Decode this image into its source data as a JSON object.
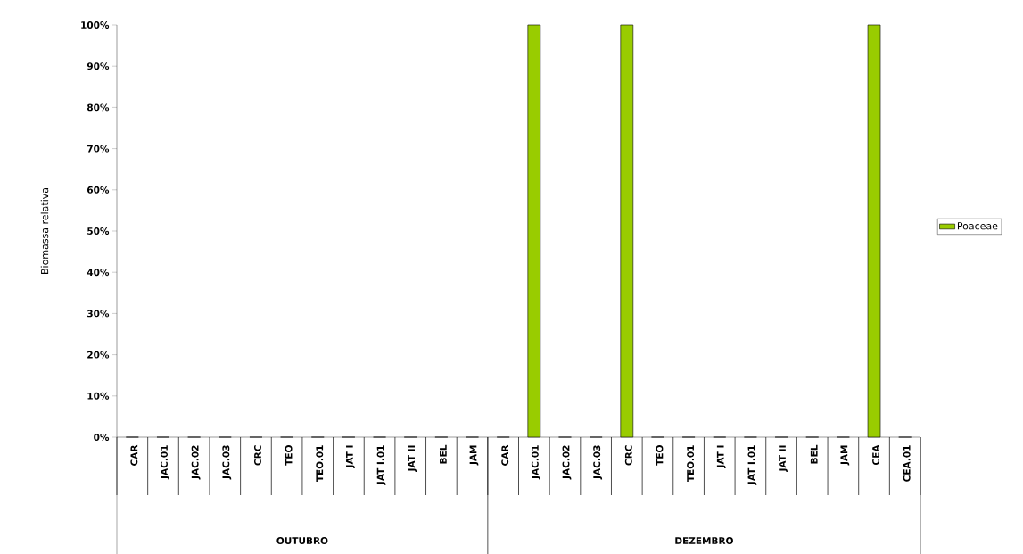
{
  "chart_data": {
    "type": "bar",
    "categories": [
      "CAR",
      "JAC.01",
      "JAC.02",
      "JAC.03",
      "CRC",
      "TEO",
      "TEO.01",
      "JAT I",
      "JAT I.01",
      "JAT II",
      "BEL",
      "JAM",
      "CAR",
      "JAC.01",
      "JAC.02",
      "JAC.03",
      "CRC",
      "TEO",
      "TEO.01",
      "JAT I",
      "JAT I.01",
      "JAT II",
      "BEL",
      "JAM",
      "CEA",
      "CEA.01"
    ],
    "series": [
      {
        "name": "Poaceae",
        "color": "#99cc00",
        "values": [
          0,
          0,
          0,
          0,
          0,
          0,
          0,
          0,
          0,
          0,
          0,
          0,
          0,
          100,
          0,
          0,
          100,
          0,
          0,
          0,
          0,
          0,
          0,
          0,
          100,
          0
        ]
      }
    ],
    "ylabel": "Biomassa relativa",
    "ylim": [
      0,
      100
    ],
    "yticks": [
      {
        "value": 0,
        "label": "0%"
      },
      {
        "value": 10,
        "label": "10%"
      },
      {
        "value": 20,
        "label": "20%"
      },
      {
        "value": 30,
        "label": "30%"
      },
      {
        "value": 40,
        "label": "40%"
      },
      {
        "value": 50,
        "label": "50%"
      },
      {
        "value": 60,
        "label": "60%"
      },
      {
        "value": 70,
        "label": "70%"
      },
      {
        "value": 80,
        "label": "80%"
      },
      {
        "value": 90,
        "label": "90%"
      },
      {
        "value": 100,
        "label": "100%"
      }
    ],
    "annotations": [
      "OUTUBRO",
      "DEZEMBRO"
    ],
    "legend": "right",
    "grid": false
  }
}
